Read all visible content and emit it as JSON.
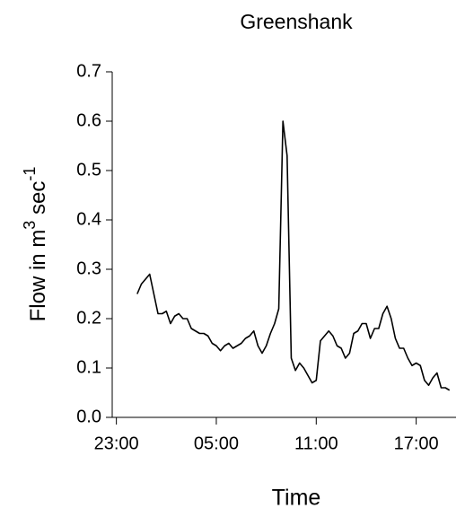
{
  "chart_data": {
    "type": "line",
    "title": "Greenshank",
    "xlabel": "Time",
    "ylabel": [
      "Flow in m",
      "3",
      " sec",
      "-1"
    ],
    "x": [
      24.25,
      24.5,
      24.75,
      25,
      25.25,
      25.5,
      25.75,
      26,
      26.25,
      26.5,
      26.75,
      27,
      27.25,
      27.5,
      27.75,
      28,
      28.25,
      28.5,
      28.75,
      29,
      29.25,
      29.5,
      29.75,
      30,
      30.25,
      30.5,
      30.75,
      31,
      31.25,
      31.5,
      31.75,
      32,
      32.25,
      32.5,
      32.75,
      33,
      33.25,
      33.5,
      33.75,
      34,
      34.25,
      34.5,
      34.75,
      35,
      35.25,
      35.5,
      35.75,
      36,
      36.25,
      36.5,
      36.75,
      37,
      37.25,
      37.5,
      37.75,
      38,
      38.25,
      38.5,
      38.75,
      39,
      39.25,
      39.5,
      39.75,
      40,
      40.25,
      40.5,
      40.75,
      41,
      41.25,
      41.5,
      41.75,
      42,
      42.25,
      42.5,
      42.75,
      43
    ],
    "series": [
      {
        "name": "Greenshank",
        "color": "#000000",
        "values": [
          0.25,
          0.27,
          0.28,
          0.29,
          0.25,
          0.21,
          0.21,
          0.215,
          0.19,
          0.205,
          0.21,
          0.2,
          0.2,
          0.18,
          0.175,
          0.17,
          0.17,
          0.165,
          0.15,
          0.145,
          0.135,
          0.145,
          0.15,
          0.14,
          0.145,
          0.15,
          0.16,
          0.165,
          0.175,
          0.145,
          0.13,
          0.145,
          0.17,
          0.19,
          0.22,
          0.6,
          0.53,
          0.12,
          0.095,
          0.11,
          0.1,
          0.085,
          0.07,
          0.075,
          0.155,
          0.165,
          0.175,
          0.165,
          0.145,
          0.14,
          0.12,
          0.13,
          0.17,
          0.175,
          0.19,
          0.19,
          0.16,
          0.18,
          0.18,
          0.21,
          0.225,
          0.2,
          0.16,
          0.14,
          0.14,
          0.12,
          0.105,
          0.11,
          0.105,
          0.075,
          0.065,
          0.08,
          0.09,
          0.06,
          0.06,
          0.055
        ]
      }
    ],
    "xlim": [
      22.75,
      43.5
    ],
    "xticks": [
      {
        "value": 23,
        "label": "23:00"
      },
      {
        "value": 29,
        "label": "05:00"
      },
      {
        "value": 35,
        "label": "11:00"
      },
      {
        "value": 41,
        "label": "17:00"
      }
    ],
    "ylim": [
      0,
      0.7
    ],
    "yticks": [
      {
        "value": 0,
        "label": "0.0"
      },
      {
        "value": 0.1,
        "label": "0.1"
      },
      {
        "value": 0.2,
        "label": "0.2"
      },
      {
        "value": 0.3,
        "label": "0.3"
      },
      {
        "value": 0.4,
        "label": "0.4"
      },
      {
        "value": 0.5,
        "label": "0.5"
      },
      {
        "value": 0.6,
        "label": "0.6"
      },
      {
        "value": 0.7,
        "label": "0.7"
      }
    ],
    "grid": false
  }
}
